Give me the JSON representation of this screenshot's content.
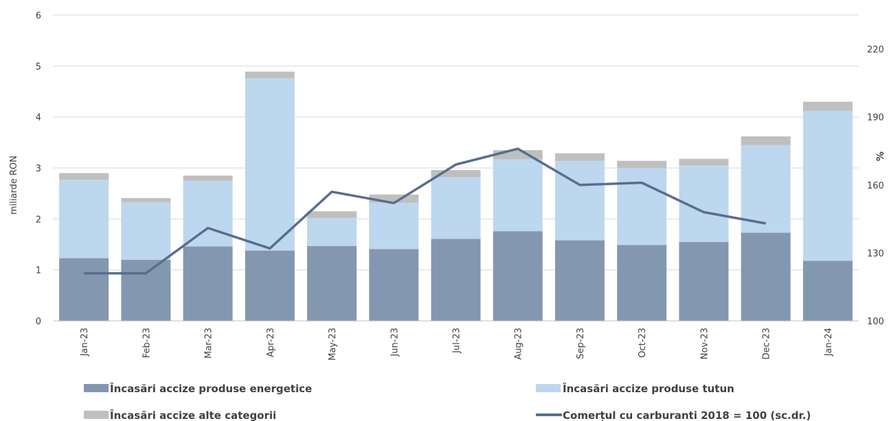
{
  "chart_data": {
    "type": "bar",
    "stacked": true,
    "categories": [
      "Jan-23",
      "Feb-23",
      "Mar-23",
      "Apr-23",
      "May-23",
      "Jun-23",
      "Jul-23",
      "Aug-23",
      "Sep-23",
      "Oct-23",
      "Nov-23",
      "Dec-23",
      "Jan-24"
    ],
    "series": [
      {
        "name": "Încasări accize produse energetice",
        "color": "#8497b0",
        "axis": "left",
        "values": [
          1.23,
          1.2,
          1.46,
          1.38,
          1.47,
          1.41,
          1.61,
          1.76,
          1.58,
          1.49,
          1.55,
          1.73,
          1.18
        ]
      },
      {
        "name": "Încasări accize produse tutun",
        "color": "#bdd7ee",
        "axis": "left",
        "values": [
          1.54,
          1.13,
          1.29,
          3.38,
          0.55,
          0.91,
          1.21,
          1.41,
          1.56,
          1.51,
          1.5,
          1.72,
          2.94
        ]
      },
      {
        "name": "Încasări accize alte categorii",
        "color": "#bfbfbf",
        "axis": "left",
        "values": [
          0.13,
          0.08,
          0.1,
          0.13,
          0.13,
          0.16,
          0.14,
          0.18,
          0.15,
          0.14,
          0.13,
          0.17,
          0.18
        ]
      },
      {
        "name": "Comerțul cu carburanti 2018 = 100 (sc.dr.)",
        "type": "line",
        "color": "#586e8e",
        "axis": "right",
        "values": [
          121,
          121,
          141,
          132,
          157,
          152,
          169,
          176,
          160,
          161,
          148,
          143,
          null
        ]
      }
    ],
    "y_left": {
      "label": "miliarde RON",
      "min": 0,
      "max": 6,
      "ticks": [
        0,
        1,
        2,
        3,
        4,
        5,
        6
      ]
    },
    "y_right": {
      "label": "%",
      "min": 100,
      "max": 235,
      "ticks": [
        100,
        130,
        160,
        190,
        220
      ]
    },
    "grid": true,
    "legend_position": "bottom"
  }
}
